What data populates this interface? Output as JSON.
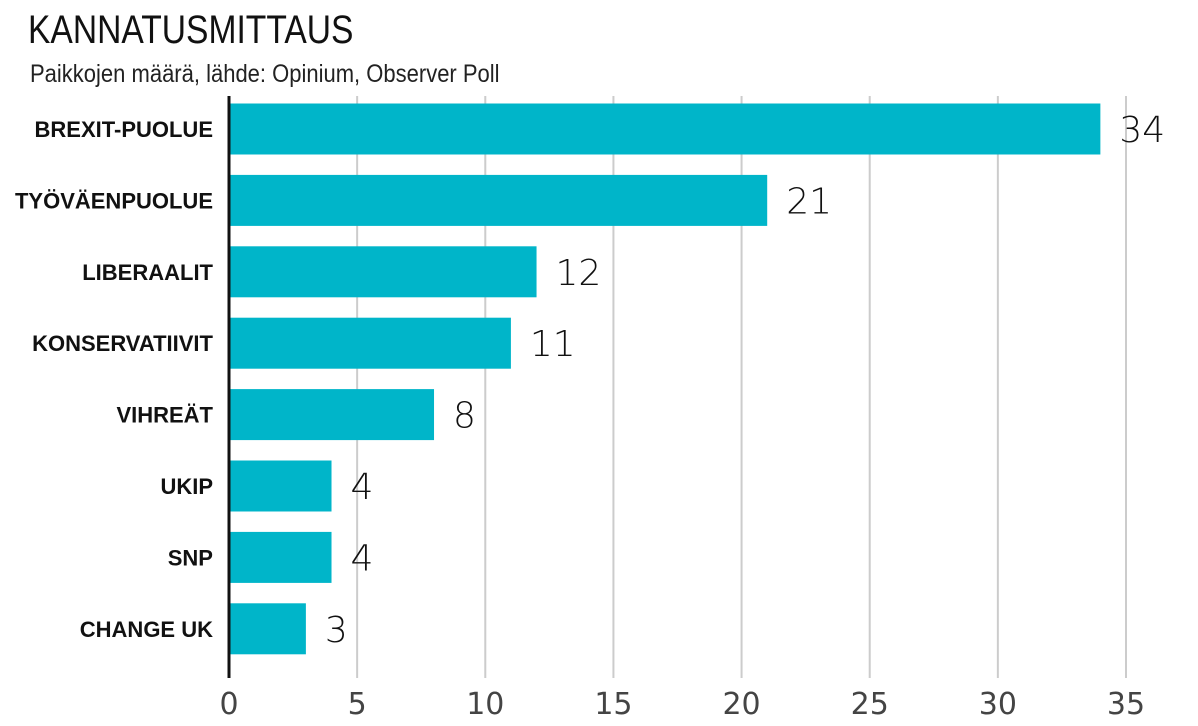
{
  "chart_data": {
    "type": "bar",
    "orientation": "horizontal",
    "title": "KANNATUSMITTAUS",
    "subtitle": "Paikkojen määrä, lähde: Opinium, Observer Poll",
    "categories": [
      "BREXIT-PUOLUE",
      "TYÖVÄENPUOLUE",
      "LIBERAALIT",
      "KONSERVATIIVIT",
      "VIHREÄT",
      "UKIP",
      "SNP",
      "CHANGE UK"
    ],
    "values": [
      34,
      21,
      12,
      11,
      8,
      4,
      4,
      3
    ],
    "xlim": [
      0,
      35
    ],
    "xticks": [
      0,
      5,
      10,
      15,
      20,
      25,
      30,
      35
    ],
    "grid": "vertical",
    "legend": "none",
    "data_labels": true,
    "bar_color": "#00b5c9",
    "gridline_color": "#cccccc"
  }
}
